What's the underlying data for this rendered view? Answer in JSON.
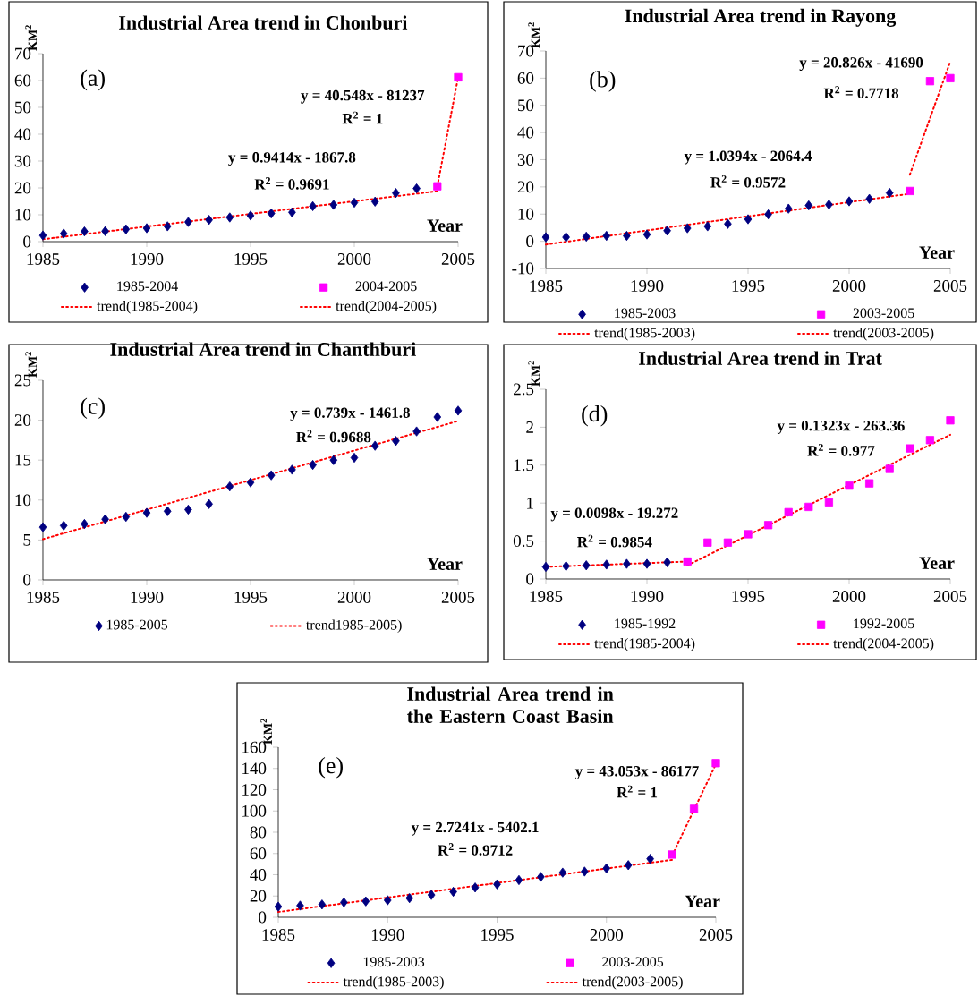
{
  "chart_data": [
    {
      "type": "scatter",
      "title": "Industrial Area trend in Chonburi",
      "xlabel": "Year",
      "ylabel": "KM$^{2}$",
      "xlim": [
        1985,
        2005
      ],
      "xticks": [
        1985,
        1990,
        1995,
        2000,
        2005
      ],
      "ylim": [
        0,
        70
      ],
      "yticks": [
        0,
        10,
        20,
        30,
        40,
        50,
        60,
        70
      ],
      "legend": "bottom",
      "annotations": [
        "(a)",
        "y = 0.9414x - 1867.8",
        "R$^{2}$ = 0.9691",
        "y = 40.548x - 81237",
        "R$^{2}$ = 1"
      ],
      "series": [
        {
          "name": "1985-2004",
          "marker": "diamond",
          "color": "#000080",
          "x": [
            1985,
            1986,
            1987,
            1988,
            1989,
            1990,
            1991,
            1992,
            1993,
            1994,
            1995,
            1996,
            1997,
            1998,
            1999,
            2000,
            2001,
            2002,
            2003
          ],
          "values": [
            2.3,
            3.0,
            3.8,
            3.9,
            4.6,
            5.0,
            5.7,
            7.3,
            8.1,
            9.0,
            9.7,
            10.5,
            10.9,
            13.2,
            13.7,
            14.5,
            14.9,
            18.1,
            19.8
          ]
        },
        {
          "name": "2004-2005",
          "marker": "square",
          "color": "#ff00ff",
          "x": [
            2004,
            2005
          ],
          "values": [
            20.6,
            61.2
          ]
        },
        {
          "name": "trend(1985-2004)",
          "type": "line",
          "marker": "none",
          "line_style": "dashed",
          "color": "#ff0000",
          "x": [
            1985,
            2004
          ],
          "values": [
            0.9,
            18.8
          ]
        },
        {
          "name": "trend(2004-2005)",
          "type": "line",
          "marker": "none",
          "line_style": "dashed",
          "color": "#ff0000",
          "x": [
            2004,
            2005
          ],
          "values": [
            20.6,
            61.2
          ]
        }
      ]
    },
    {
      "type": "scatter",
      "title": "Industrial Area trend in Rayong",
      "xlabel": "Year",
      "ylabel": "KM$^{2}$",
      "xlim": [
        1985,
        2005
      ],
      "xticks": [
        1985,
        1990,
        1995,
        2000,
        2005
      ],
      "ylim": [
        -10,
        70
      ],
      "yticks": [
        -10,
        0,
        10,
        20,
        30,
        40,
        50,
        60,
        70
      ],
      "legend": "bottom",
      "annotations": [
        "(b)",
        "y = 1.0394x - 2064.4",
        "R$^{2}$ = 0.9572",
        "y = 20.826x - 41690",
        "R$^{2}$ = 0.7718"
      ],
      "series": [
        {
          "name": "1985-2003",
          "marker": "diamond",
          "color": "#000080",
          "x": [
            1985,
            1986,
            1987,
            1988,
            1989,
            1990,
            1991,
            1992,
            1993,
            1994,
            1995,
            1996,
            1997,
            1998,
            1999,
            2000,
            2001,
            2002
          ],
          "values": [
            1.5,
            1.5,
            1.7,
            2.0,
            2.0,
            2.5,
            3.9,
            4.8,
            5.5,
            6.4,
            8.1,
            9.9,
            12.0,
            13.2,
            13.5,
            14.7,
            15.6,
            17.8
          ]
        },
        {
          "name": "2003-2005",
          "marker": "square",
          "color": "#ff00ff",
          "x": [
            2003,
            2004,
            2005
          ],
          "values": [
            18.5,
            58.9,
            60.0
          ]
        },
        {
          "name": "trend(1985-2003)",
          "type": "line",
          "marker": "none",
          "line_style": "dashed",
          "color": "#ff0000",
          "x": [
            1985,
            2003
          ],
          "values": [
            -1.2,
            17.5
          ]
        },
        {
          "name": "trend(2003-2005)",
          "type": "line",
          "marker": "none",
          "line_style": "dashed",
          "color": "#ff0000",
          "x": [
            2003,
            2005
          ],
          "values": [
            24.5,
            66.1
          ]
        }
      ]
    },
    {
      "type": "scatter",
      "title": "Industrial Area trend in Chanthburi",
      "xlabel": "Year",
      "ylabel": "KM$^{2}$",
      "xlim": [
        1985,
        2005
      ],
      "xticks": [
        1985,
        1990,
        1995,
        2000,
        2005
      ],
      "ylim": [
        0,
        25
      ],
      "yticks": [
        0,
        5,
        10,
        15,
        20,
        25
      ],
      "legend": "bottom",
      "annotations": [
        "(c)",
        "y = 0.739x - 1461.8",
        "R$^{2}$ = 0.9688"
      ],
      "series": [
        {
          "name": "1985-2005",
          "marker": "diamond",
          "color": "#000080",
          "x": [
            1985,
            1986,
            1987,
            1988,
            1989,
            1990,
            1991,
            1992,
            1993,
            1994,
            1995,
            1996,
            1997,
            1998,
            1999,
            2000,
            2001,
            2002,
            2003,
            2004,
            2005
          ],
          "values": [
            6.6,
            6.8,
            7.0,
            7.6,
            7.9,
            8.4,
            8.6,
            8.8,
            9.5,
            11.7,
            12.2,
            13.1,
            13.8,
            14.4,
            15.0,
            15.3,
            16.8,
            17.4,
            18.6,
            20.4,
            21.2
          ]
        },
        {
          "name": "trend1985-2005)",
          "type": "line",
          "marker": "none",
          "line_style": "dashed",
          "color": "#ff0000",
          "x": [
            1985,
            2005
          ],
          "values": [
            5.1,
            19.9
          ]
        }
      ]
    },
    {
      "type": "scatter",
      "title": "Industrial Area trend in Trat",
      "xlabel": "Year",
      "ylabel": "KM$^{2}$",
      "xlim": [
        1985,
        2005
      ],
      "xticks": [
        1985,
        1990,
        1995,
        2000,
        2005
      ],
      "ylim": [
        0,
        2.5
      ],
      "yticks": [
        0,
        0.5,
        1,
        1.5,
        2,
        2.5
      ],
      "legend": "bottom",
      "annotations": [
        "(d)",
        "y = 0.0098x - 19.272",
        "R$^{2}$ = 0.9854",
        "y = 0.1323x - 263.36",
        "R$^{2}$ = 0.977"
      ],
      "series": [
        {
          "name": "1985-1992",
          "marker": "diamond",
          "color": "#000080",
          "x": [
            1985,
            1986,
            1987,
            1988,
            1989,
            1990,
            1991
          ],
          "values": [
            0.16,
            0.17,
            0.18,
            0.19,
            0.2,
            0.2,
            0.22
          ]
        },
        {
          "name": "1992-2005",
          "marker": "square",
          "color": "#ff00ff",
          "x": [
            1992,
            1993,
            1994,
            1995,
            1996,
            1997,
            1998,
            1999,
            2000,
            2001,
            2002,
            2003,
            2004,
            2005
          ],
          "values": [
            0.23,
            0.48,
            0.48,
            0.59,
            0.71,
            0.88,
            0.95,
            1.01,
            1.23,
            1.26,
            1.45,
            1.72,
            1.83,
            2.09
          ]
        },
        {
          "name": "trend(1985-2004)",
          "type": "line",
          "marker": "none",
          "line_style": "dashed",
          "color": "#ff0000",
          "x": [
            1985,
            1992
          ],
          "values": [
            0.16,
            0.23
          ]
        },
        {
          "name": "trend(2004-2005)",
          "type": "line",
          "marker": "none",
          "line_style": "dashed",
          "color": "#ff0000",
          "x": [
            1992,
            2005
          ],
          "values": [
            0.18,
            1.9
          ]
        }
      ]
    },
    {
      "type": "scatter",
      "title": "Industrial Area trend in the Eastern Coast Basin",
      "xlabel": "Year",
      "ylabel": "KM$^{2}$",
      "xlim": [
        1985,
        2005
      ],
      "xticks": [
        1985,
        1990,
        1995,
        2000,
        2005
      ],
      "ylim": [
        0,
        160
      ],
      "yticks": [
        0,
        20,
        40,
        60,
        80,
        100,
        120,
        140,
        160
      ],
      "legend": "bottom",
      "annotations": [
        "(e)",
        "y = 2.7241x - 5402.1",
        "R$^{2}$ = 0.9712",
        "y = 43.053x - 86177",
        "R$^{2}$ = 1"
      ],
      "series": [
        {
          "name": "1985-2003",
          "marker": "diamond",
          "color": "#000080",
          "x": [
            1985,
            1986,
            1987,
            1988,
            1989,
            1990,
            1991,
            1992,
            1993,
            1994,
            1995,
            1996,
            1997,
            1998,
            1999,
            2000,
            2001,
            2002
          ],
          "values": [
            10,
            11,
            12,
            14,
            15,
            16,
            18,
            21,
            24,
            28,
            31,
            35,
            38,
            42,
            43,
            46,
            49,
            55
          ]
        },
        {
          "name": "2003-2005",
          "marker": "square",
          "color": "#ff00ff",
          "x": [
            2003,
            2004,
            2005
          ],
          "values": [
            59,
            102,
            145
          ]
        },
        {
          "name": "trend(1985-2003)",
          "type": "line",
          "marker": "none",
          "line_style": "dashed",
          "color": "#ff0000",
          "x": [
            1985,
            2003
          ],
          "values": [
            5,
            54
          ]
        },
        {
          "name": "trend(2003-2005)",
          "type": "line",
          "marker": "none",
          "line_style": "dashed",
          "color": "#ff0000",
          "x": [
            2003,
            2005
          ],
          "values": [
            58,
            144
          ]
        }
      ]
    }
  ]
}
